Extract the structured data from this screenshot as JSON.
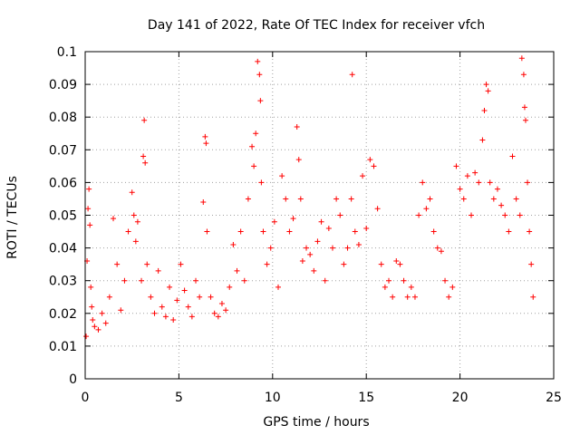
{
  "chart_data": {
    "type": "scatter",
    "title": "Day 141 of 2022, Rate Of TEC Index for receiver vfch",
    "xlabel": "GPS time / hours",
    "ylabel": "ROTI / TECUs",
    "xlim": [
      0,
      25
    ],
    "ylim": [
      0,
      0.1
    ],
    "x_ticks": [
      "0",
      "5",
      "10",
      "15",
      "20",
      "25"
    ],
    "y_ticks": [
      "0",
      "0.01",
      "0.02",
      "0.03",
      "0.04",
      "0.05",
      "0.06",
      "0.07",
      "0.08",
      "0.09",
      "0.1"
    ],
    "grid": true,
    "marker": "plus",
    "series_color": "#ff0000",
    "series": [
      {
        "x": [
          0.05,
          0.1,
          0.15,
          0.2,
          0.25,
          0.3,
          0.35,
          0.4,
          0.5,
          0.7,
          0.9,
          1.1,
          1.3,
          1.5,
          1.7,
          1.9,
          2.1,
          2.3,
          2.5,
          2.6,
          2.7,
          2.8,
          3.0,
          3.1,
          3.15,
          3.2,
          3.3,
          3.5,
          3.7,
          3.9,
          4.1,
          4.3,
          4.5,
          4.7,
          4.9,
          5.1,
          5.3,
          5.5,
          5.7,
          5.9,
          6.1,
          6.3,
          6.4,
          6.45,
          6.5,
          6.7,
          6.9,
          7.1,
          7.3,
          7.5,
          7.7,
          7.9,
          8.1,
          8.3,
          8.5,
          8.7,
          8.9,
          9.0,
          9.1,
          9.2,
          9.3,
          9.35,
          9.4,
          9.5,
          9.7,
          9.9,
          10.1,
          10.3,
          10.5,
          10.7,
          10.9,
          11.1,
          11.3,
          11.4,
          11.5,
          11.6,
          11.8,
          12.0,
          12.2,
          12.4,
          12.6,
          12.8,
          13.0,
          13.2,
          13.4,
          13.6,
          13.8,
          14.0,
          14.2,
          14.25,
          14.4,
          14.6,
          14.8,
          15.0,
          15.2,
          15.4,
          15.6,
          15.8,
          16.0,
          16.2,
          16.4,
          16.6,
          16.8,
          17.0,
          17.2,
          17.4,
          17.6,
          17.8,
          18.0,
          18.2,
          18.4,
          18.6,
          18.8,
          19.0,
          19.2,
          19.4,
          19.6,
          19.8,
          20.0,
          20.2,
          20.4,
          20.6,
          20.8,
          21.0,
          21.2,
          21.3,
          21.4,
          21.5,
          21.6,
          21.8,
          22.0,
          22.2,
          22.4,
          22.6,
          22.8,
          23.0,
          23.2,
          23.3,
          23.4,
          23.45,
          23.5,
          23.6,
          23.7,
          23.8,
          23.9
        ],
        "y": [
          0.013,
          0.036,
          0.052,
          0.058,
          0.047,
          0.028,
          0.022,
          0.018,
          0.016,
          0.015,
          0.02,
          0.017,
          0.025,
          0.049,
          0.035,
          0.021,
          0.03,
          0.045,
          0.057,
          0.05,
          0.042,
          0.048,
          0.03,
          0.068,
          0.079,
          0.066,
          0.035,
          0.025,
          0.02,
          0.033,
          0.022,
          0.019,
          0.028,
          0.018,
          0.024,
          0.035,
          0.027,
          0.022,
          0.019,
          0.03,
          0.025,
          0.054,
          0.074,
          0.072,
          0.045,
          0.025,
          0.02,
          0.019,
          0.023,
          0.021,
          0.028,
          0.041,
          0.033,
          0.045,
          0.03,
          0.055,
          0.071,
          0.065,
          0.075,
          0.097,
          0.093,
          0.085,
          0.06,
          0.045,
          0.035,
          0.04,
          0.048,
          0.028,
          0.062,
          0.055,
          0.045,
          0.049,
          0.077,
          0.067,
          0.055,
          0.036,
          0.04,
          0.038,
          0.033,
          0.042,
          0.048,
          0.03,
          0.046,
          0.04,
          0.055,
          0.05,
          0.035,
          0.04,
          0.055,
          0.093,
          0.045,
          0.041,
          0.062,
          0.046,
          0.067,
          0.065,
          0.052,
          0.035,
          0.028,
          0.03,
          0.025,
          0.036,
          0.035,
          0.03,
          0.025,
          0.028,
          0.025,
          0.05,
          0.06,
          0.052,
          0.055,
          0.045,
          0.04,
          0.039,
          0.03,
          0.025,
          0.028,
          0.065,
          0.058,
          0.055,
          0.062,
          0.05,
          0.063,
          0.06,
          0.073,
          0.082,
          0.09,
          0.088,
          0.06,
          0.055,
          0.058,
          0.053,
          0.05,
          0.045,
          0.068,
          0.055,
          0.05,
          0.098,
          0.093,
          0.083,
          0.079,
          0.06,
          0.045,
          0.035,
          0.025
        ]
      }
    ]
  }
}
